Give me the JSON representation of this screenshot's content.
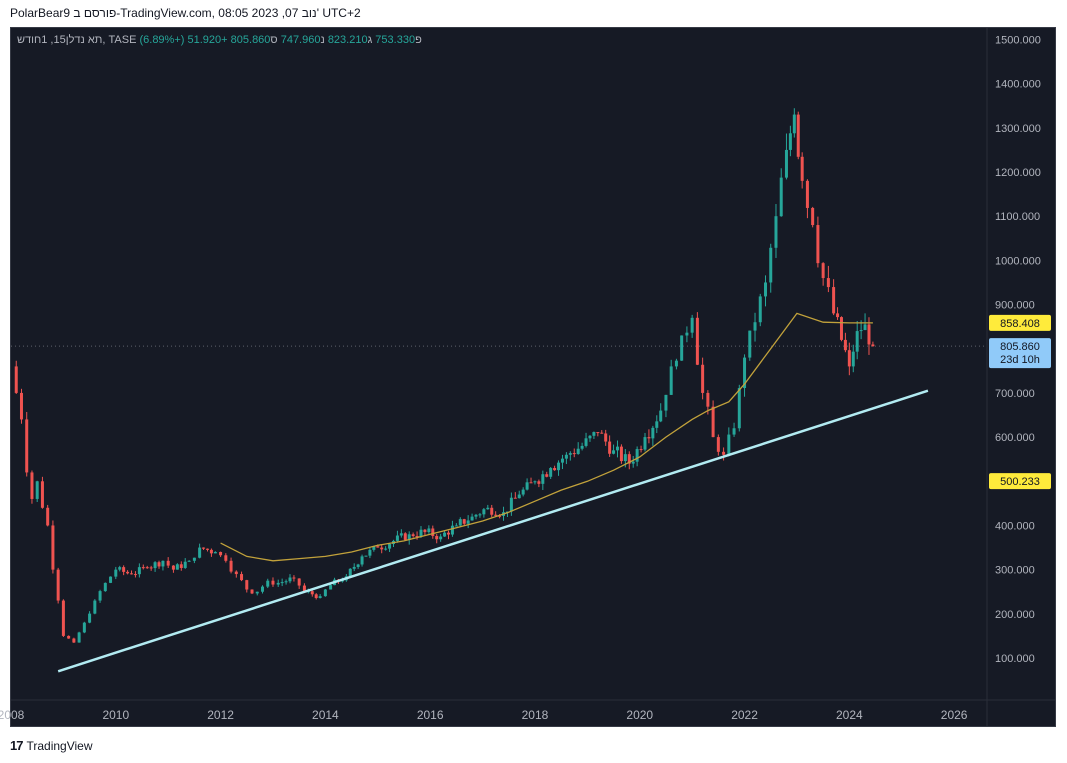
{
  "header": {
    "title": "PolarBear9 פורסם ב-TradingView.com, 08:05 2023 ,07 נוב' UTC+2"
  },
  "legend": {
    "symbol": "תא נדלן15, 1חודש, TASE",
    "open_label": "פ",
    "open": "753.330",
    "high_label": "ג",
    "high": "823.210",
    "low_label": "נ",
    "low": "747.960",
    "close_label": "ס",
    "close": "805.860",
    "change": "+51.920 (+6.89%)"
  },
  "footer": {
    "brand": "TradingView"
  },
  "colors": {
    "background": "#161a25",
    "up": "#26a69a",
    "down": "#ef5350",
    "ma": "#c2a23b",
    "trendline": "#b2ebf2",
    "axis_text": "#b2b5be"
  },
  "chart_data": {
    "type": "candlestick",
    "title": "",
    "xlabel": "",
    "ylabel": "",
    "ylim": [
      0,
      1540
    ],
    "xlim": [
      2008,
      2027.2
    ],
    "y_ticks": [
      "100.000",
      "200.000",
      "300.000",
      "400.000",
      "500.000",
      "600.000",
      "700.000",
      "800.000",
      "900.000",
      "1000.000",
      "1100.000",
      "1200.000",
      "1300.000",
      "1400.000",
      "1500.000"
    ],
    "x_ticks": [
      "2008",
      "2010",
      "2012",
      "2014",
      "2016",
      "2018",
      "2020",
      "2022",
      "2024",
      "2026"
    ],
    "price_labels": [
      {
        "text": "858.408",
        "value": 858.408,
        "style": "yellow"
      },
      {
        "text": "805.860",
        "sub": "23d 10h",
        "value": 805.86,
        "style": "blue"
      },
      {
        "text": "500.233",
        "value": 500.233,
        "style": "yellow"
      }
    ],
    "last_price": 805.86,
    "series": [
      {
        "name": "תא נדלן15",
        "kind": "close",
        "points": [
          [
            2008.0,
            760
          ],
          [
            2008.1,
            700
          ],
          [
            2008.2,
            640
          ],
          [
            2008.3,
            520
          ],
          [
            2008.4,
            460
          ],
          [
            2008.5,
            500
          ],
          [
            2008.6,
            440
          ],
          [
            2008.7,
            400
          ],
          [
            2008.8,
            300
          ],
          [
            2008.9,
            230
          ],
          [
            2009.0,
            150
          ],
          [
            2009.2,
            135
          ],
          [
            2009.4,
            180
          ],
          [
            2009.6,
            230
          ],
          [
            2009.8,
            270
          ],
          [
            2010.0,
            300
          ],
          [
            2010.3,
            290
          ],
          [
            2010.6,
            305
          ],
          [
            2010.9,
            320
          ],
          [
            2011.1,
            300
          ],
          [
            2011.4,
            320
          ],
          [
            2011.6,
            350
          ],
          [
            2011.9,
            340
          ],
          [
            2012.1,
            320
          ],
          [
            2012.3,
            290
          ],
          [
            2012.5,
            255
          ],
          [
            2012.7,
            250
          ],
          [
            2012.9,
            275
          ],
          [
            2013.1,
            270
          ],
          [
            2013.4,
            280
          ],
          [
            2013.6,
            250
          ],
          [
            2013.9,
            240
          ],
          [
            2014.1,
            265
          ],
          [
            2014.4,
            285
          ],
          [
            2014.7,
            330
          ],
          [
            2015.0,
            350
          ],
          [
            2015.3,
            365
          ],
          [
            2015.6,
            380
          ],
          [
            2015.9,
            385
          ],
          [
            2016.2,
            375
          ],
          [
            2016.5,
            400
          ],
          [
            2016.8,
            420
          ],
          [
            2017.1,
            440
          ],
          [
            2017.4,
            430
          ],
          [
            2017.7,
            470
          ],
          [
            2018.0,
            500
          ],
          [
            2018.3,
            530
          ],
          [
            2018.6,
            560
          ],
          [
            2018.9,
            580
          ],
          [
            2019.2,
            610
          ],
          [
            2019.5,
            570
          ],
          [
            2019.8,
            540
          ],
          [
            2020.1,
            600
          ],
          [
            2020.4,
            660
          ],
          [
            2020.6,
            760
          ],
          [
            2020.8,
            830
          ],
          [
            2021.0,
            870
          ],
          [
            2021.2,
            700
          ],
          [
            2021.4,
            600
          ],
          [
            2021.6,
            560
          ],
          [
            2021.8,
            620
          ],
          [
            2022.0,
            780
          ],
          [
            2022.2,
            860
          ],
          [
            2022.4,
            950
          ],
          [
            2022.6,
            1100
          ],
          [
            2022.8,
            1250
          ],
          [
            2022.95,
            1330
          ],
          [
            2023.1,
            1180
          ],
          [
            2023.3,
            1080
          ],
          [
            2023.5,
            960
          ],
          [
            2023.7,
            880
          ],
          [
            2023.85,
            820
          ],
          [
            2024.0,
            760
          ],
          [
            2024.15,
            840
          ],
          [
            2024.3,
            855
          ],
          [
            2024.45,
            805.86
          ]
        ]
      },
      {
        "name": "",
        "kind": "moving-average",
        "points": [
          [
            2012.0,
            360
          ],
          [
            2012.5,
            330
          ],
          [
            2013.0,
            320
          ],
          [
            2013.5,
            325
          ],
          [
            2014.0,
            330
          ],
          [
            2014.5,
            340
          ],
          [
            2015.0,
            355
          ],
          [
            2015.5,
            365
          ],
          [
            2016.0,
            380
          ],
          [
            2016.5,
            395
          ],
          [
            2017.0,
            410
          ],
          [
            2017.5,
            430
          ],
          [
            2018.0,
            455
          ],
          [
            2018.5,
            480
          ],
          [
            2019.0,
            500
          ],
          [
            2019.5,
            525
          ],
          [
            2020.0,
            555
          ],
          [
            2020.5,
            600
          ],
          [
            2021.0,
            640
          ],
          [
            2021.3,
            660
          ],
          [
            2021.7,
            680
          ],
          [
            2022.0,
            720
          ],
          [
            2022.5,
            800
          ],
          [
            2023.0,
            880
          ],
          [
            2023.5,
            860
          ],
          [
            2024.0,
            858.408
          ],
          [
            2024.45,
            858.408
          ]
        ]
      },
      {
        "name": "",
        "kind": "trendline",
        "points": [
          [
            2008.9,
            70
          ],
          [
            2025.5,
            705
          ]
        ]
      }
    ]
  }
}
